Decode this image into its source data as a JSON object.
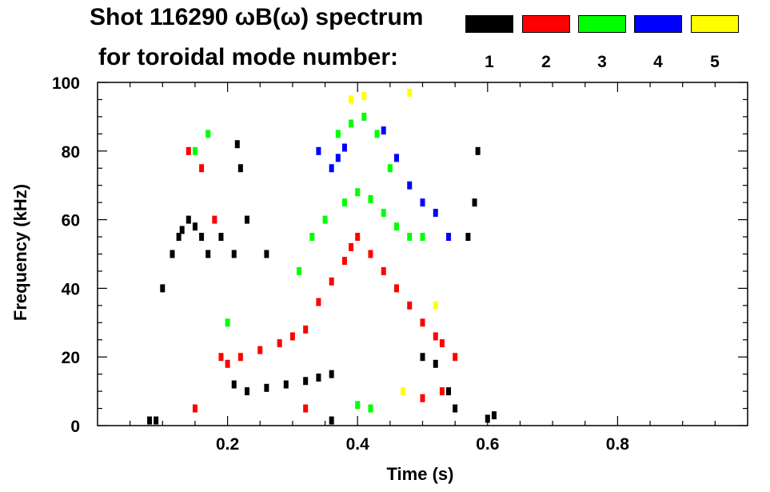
{
  "header": {
    "line1": "Shot 116290 ωB(ω) spectrum",
    "line2": "for toroidal mode number:"
  },
  "legend": [
    {
      "mode": "1",
      "color": "#000000"
    },
    {
      "mode": "2",
      "color": "#ff0000"
    },
    {
      "mode": "3",
      "color": "#00ff00"
    },
    {
      "mode": "4",
      "color": "#0000ff"
    },
    {
      "mode": "5",
      "color": "#ffff00"
    }
  ],
  "chart_data": {
    "type": "scatter",
    "title": "Shot 116290 ωB(ω) spectrum",
    "xlabel": "Time (s)",
    "ylabel": "Frequency (kHz)",
    "xlim": [
      0.0,
      1.0
    ],
    "ylim": [
      0,
      100
    ],
    "xticks": [
      0.2,
      0.4,
      0.6,
      0.8
    ],
    "xtick_labels": [
      "0.2",
      "0.4",
      "0.6",
      "0.8"
    ],
    "yticks": [
      0,
      20,
      40,
      60,
      80,
      100
    ],
    "ytick_labels": [
      "0",
      "20",
      "40",
      "60",
      "80",
      "100"
    ],
    "series": [
      {
        "name": "n=1",
        "color": "#000000",
        "points": [
          [
            0.1,
            40
          ],
          [
            0.115,
            50
          ],
          [
            0.125,
            55
          ],
          [
            0.13,
            57
          ],
          [
            0.14,
            60
          ],
          [
            0.15,
            58
          ],
          [
            0.16,
            55
          ],
          [
            0.17,
            50
          ],
          [
            0.19,
            55
          ],
          [
            0.21,
            50
          ],
          [
            0.23,
            60
          ],
          [
            0.26,
            50
          ],
          [
            0.22,
            75
          ],
          [
            0.215,
            82
          ],
          [
            0.21,
            12
          ],
          [
            0.23,
            10
          ],
          [
            0.26,
            11
          ],
          [
            0.29,
            12
          ],
          [
            0.32,
            13
          ],
          [
            0.34,
            14
          ],
          [
            0.36,
            15
          ],
          [
            0.5,
            20
          ],
          [
            0.52,
            18
          ],
          [
            0.54,
            10
          ],
          [
            0.55,
            5
          ],
          [
            0.57,
            55
          ],
          [
            0.58,
            65
          ],
          [
            0.585,
            80
          ],
          [
            0.6,
            2
          ],
          [
            0.61,
            3
          ],
          [
            0.08,
            1.5
          ],
          [
            0.09,
            1.5
          ],
          [
            0.36,
            1.5
          ]
        ]
      },
      {
        "name": "n=2",
        "color": "#ff0000",
        "points": [
          [
            0.14,
            80
          ],
          [
            0.16,
            75
          ],
          [
            0.18,
            60
          ],
          [
            0.19,
            20
          ],
          [
            0.2,
            18
          ],
          [
            0.22,
            20
          ],
          [
            0.25,
            22
          ],
          [
            0.28,
            24
          ],
          [
            0.3,
            26
          ],
          [
            0.32,
            28
          ],
          [
            0.34,
            36
          ],
          [
            0.36,
            42
          ],
          [
            0.38,
            48
          ],
          [
            0.39,
            52
          ],
          [
            0.4,
            55
          ],
          [
            0.42,
            50
          ],
          [
            0.44,
            45
          ],
          [
            0.46,
            40
          ],
          [
            0.48,
            35
          ],
          [
            0.5,
            30
          ],
          [
            0.52,
            26
          ],
          [
            0.53,
            24
          ],
          [
            0.55,
            20
          ],
          [
            0.15,
            5
          ],
          [
            0.32,
            5
          ],
          [
            0.5,
            8
          ],
          [
            0.53,
            10
          ]
        ]
      },
      {
        "name": "n=3",
        "color": "#00ff00",
        "points": [
          [
            0.15,
            80
          ],
          [
            0.17,
            85
          ],
          [
            0.2,
            30
          ],
          [
            0.31,
            45
          ],
          [
            0.33,
            55
          ],
          [
            0.35,
            60
          ],
          [
            0.38,
            65
          ],
          [
            0.4,
            68
          ],
          [
            0.42,
            66
          ],
          [
            0.44,
            62
          ],
          [
            0.46,
            58
          ],
          [
            0.48,
            55
          ],
          [
            0.5,
            55
          ],
          [
            0.37,
            85
          ],
          [
            0.39,
            88
          ],
          [
            0.41,
            90
          ],
          [
            0.43,
            85
          ],
          [
            0.45,
            75
          ],
          [
            0.4,
            6
          ],
          [
            0.42,
            5
          ]
        ]
      },
      {
        "name": "n=4",
        "color": "#0000ff",
        "points": [
          [
            0.34,
            80
          ],
          [
            0.36,
            75
          ],
          [
            0.37,
            78
          ],
          [
            0.38,
            81
          ],
          [
            0.44,
            86
          ],
          [
            0.46,
            78
          ],
          [
            0.48,
            70
          ],
          [
            0.5,
            65
          ],
          [
            0.52,
            62
          ],
          [
            0.54,
            55
          ]
        ]
      },
      {
        "name": "n=5",
        "color": "#ffff00",
        "points": [
          [
            0.39,
            95
          ],
          [
            0.41,
            96
          ],
          [
            0.48,
            97
          ],
          [
            0.52,
            35
          ],
          [
            0.47,
            10
          ]
        ]
      }
    ]
  }
}
